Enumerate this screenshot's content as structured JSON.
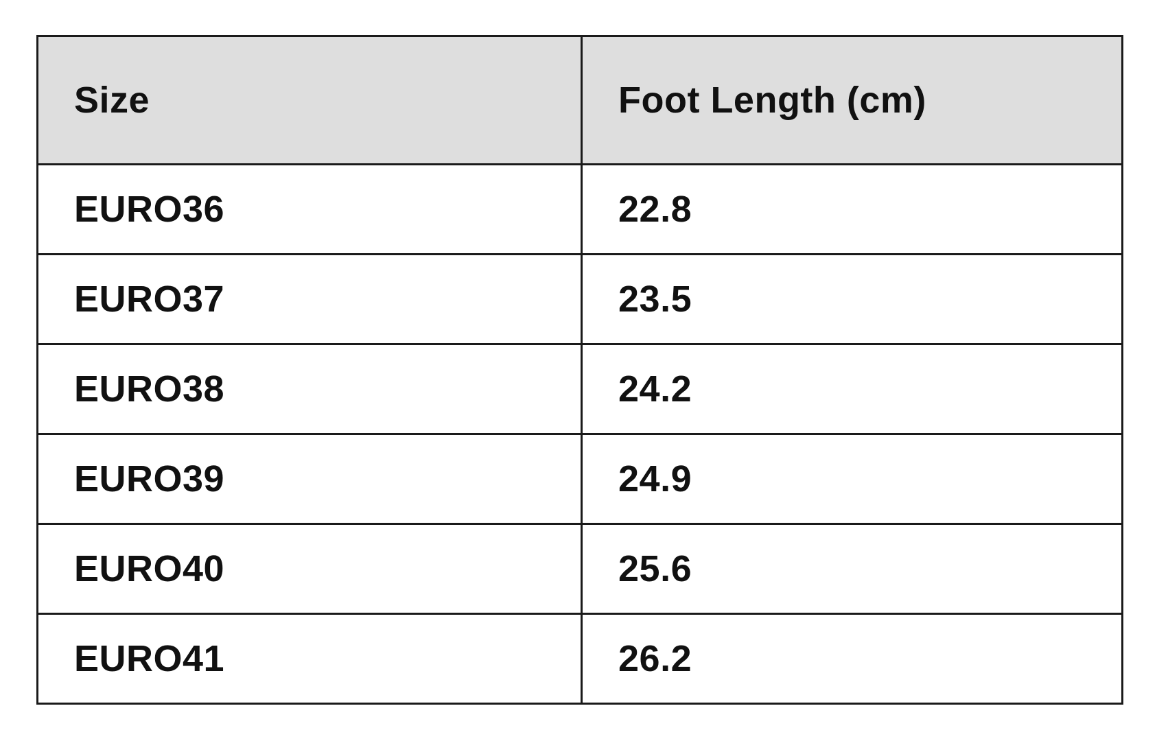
{
  "table": {
    "headers": [
      "Size",
      "Foot Length (cm)"
    ],
    "rows": [
      [
        "EURO36",
        "22.8"
      ],
      [
        "EURO37",
        "23.5"
      ],
      [
        "EURO38",
        "24.2"
      ],
      [
        "EURO39",
        "24.9"
      ],
      [
        "EURO40",
        "25.6"
      ],
      [
        "EURO41",
        "26.2"
      ]
    ]
  }
}
